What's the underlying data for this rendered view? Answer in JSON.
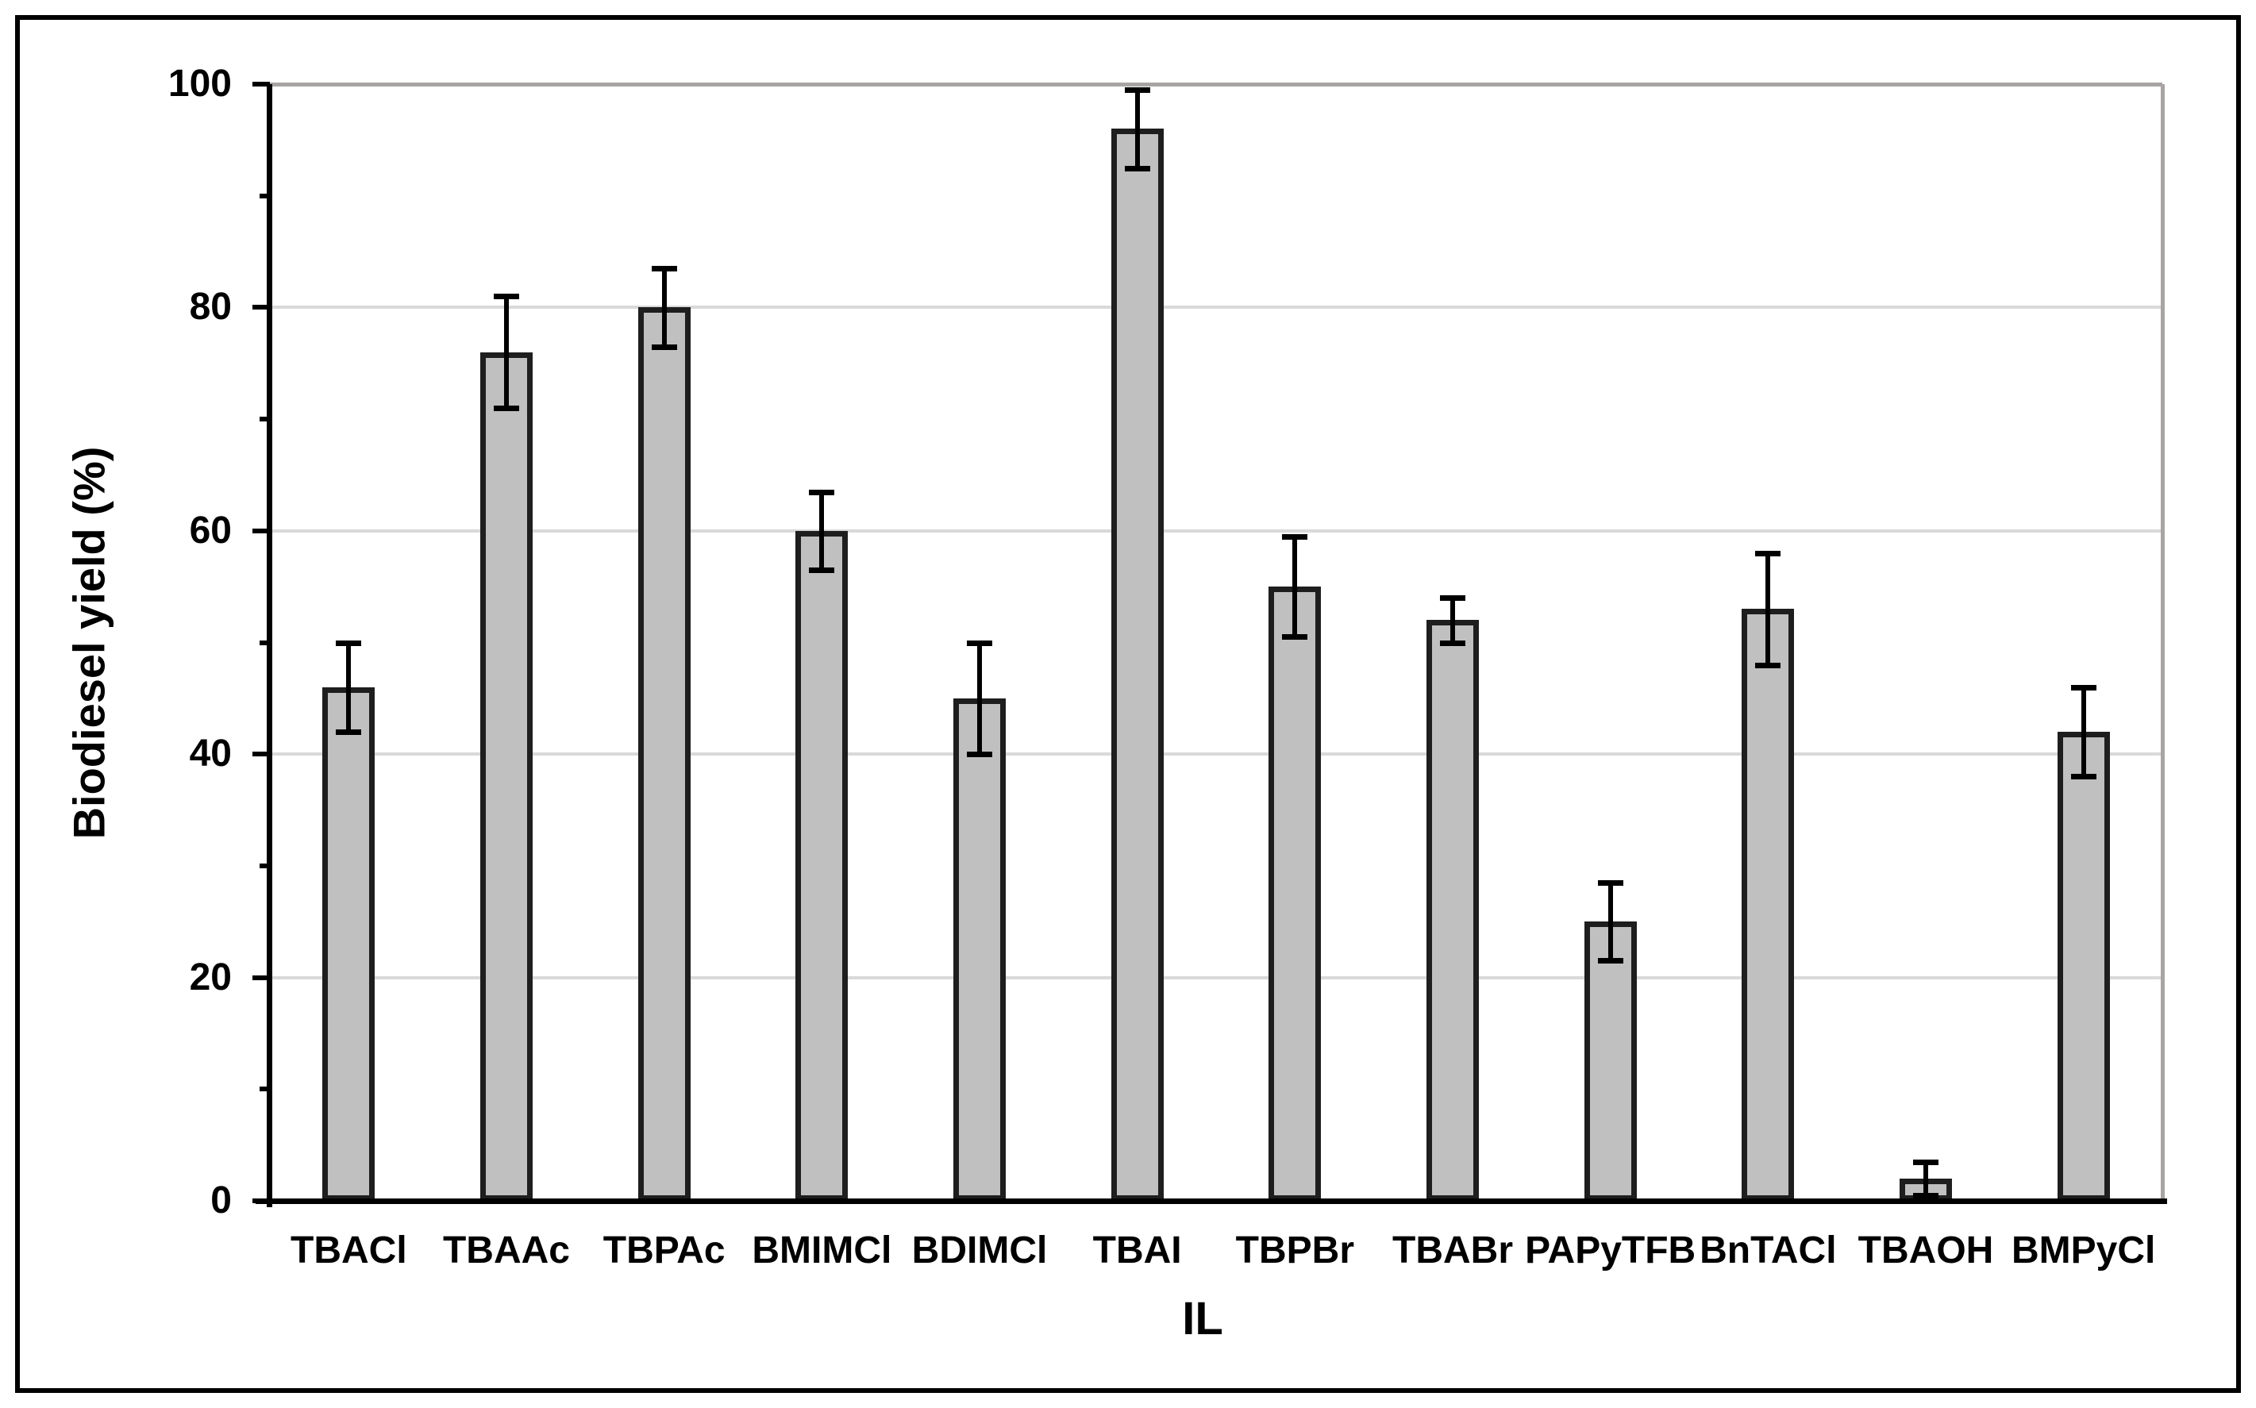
{
  "chart_data": {
    "type": "bar",
    "title": "",
    "xlabel": "IL",
    "ylabel": "Biodiesel yield (%)",
    "ylim": [
      0,
      100
    ],
    "y_major_ticks": [
      0,
      20,
      40,
      60,
      80,
      100
    ],
    "y_minor_ticks": [
      10,
      30,
      50,
      70,
      90
    ],
    "grid": "horizontal-major",
    "legend": "none",
    "categories": [
      "TBACl",
      "TBAAc",
      "TBPAc",
      "BMIMCl",
      "BDIMCl",
      "TBAI",
      "TBPBr",
      "TBABr",
      "PAPyTFB",
      "BnTACl",
      "TBAOH",
      "BMPyCl"
    ],
    "series": [
      {
        "name": "Biodiesel yield (%)",
        "values": [
          46,
          76,
          80,
          60,
          45,
          96,
          55,
          52,
          25,
          53,
          2,
          42
        ],
        "error_bars": [
          4,
          5,
          3.5,
          3.5,
          5,
          3.5,
          4.5,
          2,
          3.5,
          5,
          1.5,
          4
        ]
      }
    ],
    "colors": {
      "bar_fill": "#c0c0c0",
      "bar_border": "#1e1e1e",
      "error_bar": "#000000",
      "gridline": "#d9d9d9",
      "plot_border": "#a8a4a4",
      "axis": "#000000",
      "text": "#000000",
      "background": "#ffffff"
    }
  }
}
